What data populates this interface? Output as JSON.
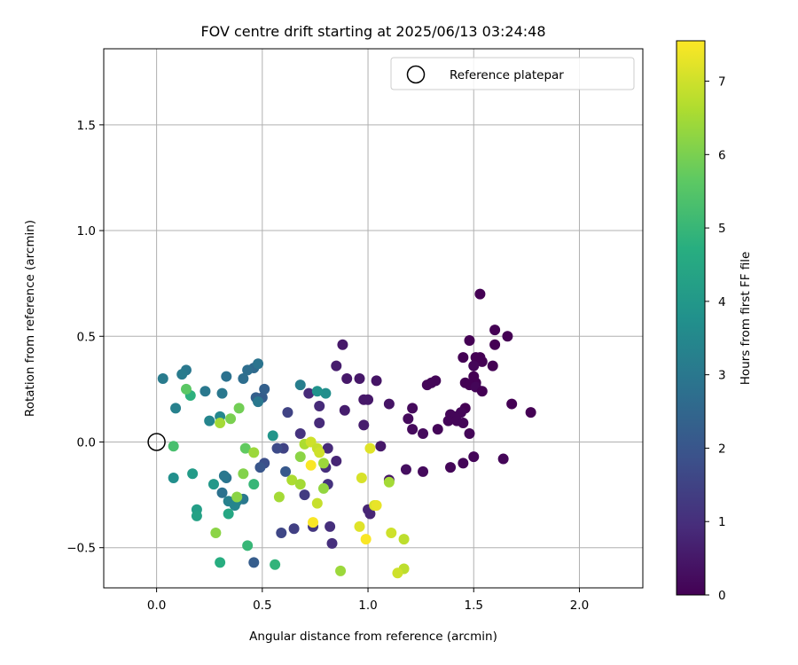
{
  "chart_data": {
    "type": "scatter",
    "title": "FOV centre drift starting at 2025/06/13 03:24:48",
    "xlabel": "Angular distance from reference (arcmin)",
    "ylabel": "Rotation from reference (arcmin)",
    "xlim": [
      -0.25,
      2.3
    ],
    "ylim": [
      -0.69,
      1.86
    ],
    "xticks": [
      {
        "value": 0.0,
        "label": "0.0"
      },
      {
        "value": 0.5,
        "label": "0.5"
      },
      {
        "value": 1.0,
        "label": "1.0"
      },
      {
        "value": 1.5,
        "label": "1.5"
      },
      {
        "value": 2.0,
        "label": "2.0"
      }
    ],
    "yticks": [
      {
        "value": -0.5,
        "label": "−0.5"
      },
      {
        "value": 0.0,
        "label": "0.0"
      },
      {
        "value": 0.5,
        "label": "0.5"
      },
      {
        "value": 1.0,
        "label": "1.0"
      },
      {
        "value": 1.5,
        "label": "1.5"
      }
    ],
    "grid": true,
    "legend": {
      "position": "top-right",
      "entries": [
        {
          "label": "Reference platepar",
          "marker": "open-circle"
        }
      ]
    },
    "reference_point": {
      "x": 0.0,
      "y": 0.0
    },
    "colorbar": {
      "label": "Hours from first FF file",
      "colormap": "viridis",
      "range": [
        0,
        7.55
      ],
      "ticks": [
        {
          "value": 0,
          "label": "0"
        },
        {
          "value": 1,
          "label": "1"
        },
        {
          "value": 2,
          "label": "2"
        },
        {
          "value": 3,
          "label": "3"
        },
        {
          "value": 4,
          "label": "4"
        },
        {
          "value": 5,
          "label": "5"
        },
        {
          "value": 6,
          "label": "6"
        },
        {
          "value": 7,
          "label": "7"
        }
      ]
    },
    "points": [
      {
        "x": 1.53,
        "y": 0.7,
        "c": 0.0
      },
      {
        "x": 1.6,
        "y": 0.53,
        "c": 0.0
      },
      {
        "x": 1.66,
        "y": 0.5,
        "c": 0.0
      },
      {
        "x": 1.48,
        "y": 0.48,
        "c": 0.0
      },
      {
        "x": 1.6,
        "y": 0.46,
        "c": 0.0
      },
      {
        "x": 1.45,
        "y": 0.4,
        "c": 0.0
      },
      {
        "x": 1.51,
        "y": 0.4,
        "c": 0.0
      },
      {
        "x": 1.53,
        "y": 0.4,
        "c": 0.0
      },
      {
        "x": 1.54,
        "y": 0.38,
        "c": 0.0
      },
      {
        "x": 1.5,
        "y": 0.36,
        "c": 0.1
      },
      {
        "x": 1.59,
        "y": 0.36,
        "c": 0.0
      },
      {
        "x": 1.5,
        "y": 0.31,
        "c": 0.0
      },
      {
        "x": 1.51,
        "y": 0.28,
        "c": 0.0
      },
      {
        "x": 1.46,
        "y": 0.28,
        "c": 0.0
      },
      {
        "x": 1.48,
        "y": 0.27,
        "c": 0.0
      },
      {
        "x": 1.51,
        "y": 0.26,
        "c": 0.1
      },
      {
        "x": 1.54,
        "y": 0.24,
        "c": 0.0
      },
      {
        "x": 1.32,
        "y": 0.29,
        "c": 0.1
      },
      {
        "x": 1.28,
        "y": 0.27,
        "c": 0.1
      },
      {
        "x": 1.3,
        "y": 0.28,
        "c": 0.1
      },
      {
        "x": 1.68,
        "y": 0.18,
        "c": 0.0
      },
      {
        "x": 1.77,
        "y": 0.14,
        "c": 0.0
      },
      {
        "x": 1.46,
        "y": 0.16,
        "c": 0.0
      },
      {
        "x": 1.44,
        "y": 0.14,
        "c": 0.1
      },
      {
        "x": 1.39,
        "y": 0.13,
        "c": 0.1
      },
      {
        "x": 1.41,
        "y": 0.12,
        "c": 0.1
      },
      {
        "x": 1.38,
        "y": 0.1,
        "c": 0.1
      },
      {
        "x": 1.42,
        "y": 0.1,
        "c": 0.1
      },
      {
        "x": 1.45,
        "y": 0.09,
        "c": 0.1
      },
      {
        "x": 1.33,
        "y": 0.06,
        "c": 0.1
      },
      {
        "x": 1.26,
        "y": 0.04,
        "c": 0.2
      },
      {
        "x": 1.48,
        "y": 0.04,
        "c": 0.1
      },
      {
        "x": 1.19,
        "y": 0.11,
        "c": 0.2
      },
      {
        "x": 1.21,
        "y": 0.06,
        "c": 0.2
      },
      {
        "x": 1.21,
        "y": 0.16,
        "c": 0.2
      },
      {
        "x": 1.5,
        "y": -0.07,
        "c": 0.1
      },
      {
        "x": 1.64,
        "y": -0.08,
        "c": 0.1
      },
      {
        "x": 1.45,
        "y": -0.1,
        "c": 0.1
      },
      {
        "x": 1.39,
        "y": -0.12,
        "c": 0.1
      },
      {
        "x": 1.26,
        "y": -0.14,
        "c": 0.2
      },
      {
        "x": 1.18,
        "y": -0.13,
        "c": 0.3
      },
      {
        "x": 1.1,
        "y": -0.18,
        "c": 0.4
      },
      {
        "x": 0.88,
        "y": 0.46,
        "c": 0.5
      },
      {
        "x": 0.85,
        "y": 0.36,
        "c": 0.6
      },
      {
        "x": 0.9,
        "y": 0.3,
        "c": 0.5
      },
      {
        "x": 0.96,
        "y": 0.3,
        "c": 0.5
      },
      {
        "x": 1.04,
        "y": 0.29,
        "c": 0.4
      },
      {
        "x": 0.98,
        "y": 0.2,
        "c": 0.5
      },
      {
        "x": 1.0,
        "y": 0.2,
        "c": 0.5
      },
      {
        "x": 1.1,
        "y": 0.18,
        "c": 0.4
      },
      {
        "x": 0.89,
        "y": 0.15,
        "c": 0.6
      },
      {
        "x": 0.98,
        "y": 0.08,
        "c": 0.6
      },
      {
        "x": 1.06,
        "y": -0.02,
        "c": 0.5
      },
      {
        "x": 0.85,
        "y": -0.09,
        "c": 0.8
      },
      {
        "x": 0.72,
        "y": 0.23,
        "c": 0.9
      },
      {
        "x": 0.77,
        "y": 0.17,
        "c": 0.9
      },
      {
        "x": 0.77,
        "y": 0.09,
        "c": 0.9
      },
      {
        "x": 0.68,
        "y": 0.04,
        "c": 1.1
      },
      {
        "x": 0.81,
        "y": -0.03,
        "c": 0.9
      },
      {
        "x": 0.8,
        "y": -0.12,
        "c": 1.0
      },
      {
        "x": 0.81,
        "y": -0.2,
        "c": 1.1
      },
      {
        "x": 0.7,
        "y": -0.25,
        "c": 1.3
      },
      {
        "x": 1.0,
        "y": -0.32,
        "c": 0.8
      },
      {
        "x": 1.01,
        "y": -0.34,
        "c": 0.8
      },
      {
        "x": 0.82,
        "y": -0.4,
        "c": 1.0
      },
      {
        "x": 0.83,
        "y": -0.48,
        "c": 1.0
      },
      {
        "x": 0.74,
        "y": -0.4,
        "c": 1.2
      },
      {
        "x": 0.65,
        "y": -0.41,
        "c": 1.4
      },
      {
        "x": 0.59,
        "y": -0.43,
        "c": 1.6
      },
      {
        "x": 0.6,
        "y": -0.03,
        "c": 1.5
      },
      {
        "x": 0.62,
        "y": 0.14,
        "c": 1.5
      },
      {
        "x": 0.57,
        "y": -0.03,
        "c": 1.7
      },
      {
        "x": 0.51,
        "y": -0.1,
        "c": 1.8
      },
      {
        "x": 0.49,
        "y": -0.12,
        "c": 2.0
      },
      {
        "x": 0.47,
        "y": 0.21,
        "c": 2.3
      },
      {
        "x": 0.5,
        "y": 0.21,
        "c": 2.2
      },
      {
        "x": 0.51,
        "y": 0.25,
        "c": 2.3
      },
      {
        "x": 0.61,
        "y": -0.14,
        "c": 2.1
      },
      {
        "x": 0.46,
        "y": -0.57,
        "c": 2.2
      },
      {
        "x": 0.33,
        "y": 0.31,
        "c": 2.8
      },
      {
        "x": 0.46,
        "y": 0.35,
        "c": 2.6
      },
      {
        "x": 0.43,
        "y": 0.34,
        "c": 2.7
      },
      {
        "x": 0.41,
        "y": 0.3,
        "c": 2.7
      },
      {
        "x": 0.48,
        "y": 0.37,
        "c": 2.9
      },
      {
        "x": 0.48,
        "y": 0.19,
        "c": 3.0
      },
      {
        "x": 0.31,
        "y": 0.23,
        "c": 3.0
      },
      {
        "x": 0.23,
        "y": 0.24,
        "c": 3.0
      },
      {
        "x": 0.14,
        "y": 0.34,
        "c": 3.0
      },
      {
        "x": 0.12,
        "y": 0.32,
        "c": 3.1
      },
      {
        "x": 0.03,
        "y": 0.3,
        "c": 3.1
      },
      {
        "x": 0.09,
        "y": 0.16,
        "c": 3.3
      },
      {
        "x": 0.31,
        "y": -0.24,
        "c": 2.8
      },
      {
        "x": 0.33,
        "y": -0.17,
        "c": 2.9
      },
      {
        "x": 0.32,
        "y": -0.16,
        "c": 3.0
      },
      {
        "x": 0.34,
        "y": -0.28,
        "c": 3.3
      },
      {
        "x": 0.41,
        "y": -0.27,
        "c": 3.0
      },
      {
        "x": 0.38,
        "y": -0.28,
        "c": 3.2
      },
      {
        "x": 0.37,
        "y": -0.3,
        "c": 3.4
      },
      {
        "x": 0.25,
        "y": 0.1,
        "c": 3.4
      },
      {
        "x": 0.3,
        "y": 0.12,
        "c": 3.5
      },
      {
        "x": 0.08,
        "y": -0.17,
        "c": 3.7
      },
      {
        "x": 0.68,
        "y": 0.27,
        "c": 3.2
      },
      {
        "x": 0.8,
        "y": 0.23,
        "c": 3.7
      },
      {
        "x": 0.76,
        "y": 0.24,
        "c": 3.8
      },
      {
        "x": 0.55,
        "y": 0.03,
        "c": 3.9
      },
      {
        "x": 0.17,
        "y": -0.15,
        "c": 4.1
      },
      {
        "x": 0.27,
        "y": -0.2,
        "c": 4.0
      },
      {
        "x": 0.19,
        "y": -0.32,
        "c": 4.2
      },
      {
        "x": 0.19,
        "y": -0.35,
        "c": 4.3
      },
      {
        "x": 0.34,
        "y": -0.34,
        "c": 4.5
      },
      {
        "x": 0.3,
        "y": -0.57,
        "c": 4.7
      },
      {
        "x": 0.56,
        "y": -0.58,
        "c": 4.9
      },
      {
        "x": 0.43,
        "y": -0.49,
        "c": 5.0
      },
      {
        "x": 0.46,
        "y": -0.2,
        "c": 5.0
      },
      {
        "x": 0.16,
        "y": 0.22,
        "c": 4.8
      },
      {
        "x": 0.08,
        "y": -0.02,
        "c": 5.3
      },
      {
        "x": 0.14,
        "y": 0.25,
        "c": 5.6
      },
      {
        "x": 0.39,
        "y": 0.16,
        "c": 5.9
      },
      {
        "x": 0.35,
        "y": 0.11,
        "c": 6.0
      },
      {
        "x": 0.42,
        "y": -0.03,
        "c": 5.7
      },
      {
        "x": 0.41,
        "y": -0.15,
        "c": 6.1
      },
      {
        "x": 0.38,
        "y": -0.26,
        "c": 6.2
      },
      {
        "x": 0.28,
        "y": -0.43,
        "c": 6.2
      },
      {
        "x": 0.46,
        "y": -0.05,
        "c": 6.4
      },
      {
        "x": 0.3,
        "y": 0.09,
        "c": 6.5
      },
      {
        "x": 0.58,
        "y": -0.26,
        "c": 6.5
      },
      {
        "x": 0.64,
        "y": -0.18,
        "c": 6.6
      },
      {
        "x": 0.68,
        "y": -0.2,
        "c": 6.5
      },
      {
        "x": 0.68,
        "y": -0.07,
        "c": 6.2
      },
      {
        "x": 0.7,
        "y": -0.01,
        "c": 6.6
      },
      {
        "x": 0.79,
        "y": -0.1,
        "c": 6.4
      },
      {
        "x": 0.79,
        "y": -0.22,
        "c": 6.3
      },
      {
        "x": 0.87,
        "y": -0.61,
        "c": 6.4
      },
      {
        "x": 1.1,
        "y": -0.19,
        "c": 6.5
      },
      {
        "x": 1.17,
        "y": -0.46,
        "c": 6.8
      },
      {
        "x": 1.17,
        "y": -0.6,
        "c": 6.8
      },
      {
        "x": 1.14,
        "y": -0.62,
        "c": 7.0
      },
      {
        "x": 1.11,
        "y": -0.43,
        "c": 7.0
      },
      {
        "x": 0.97,
        "y": -0.17,
        "c": 7.1
      },
      {
        "x": 0.96,
        "y": -0.4,
        "c": 7.2
      },
      {
        "x": 1.03,
        "y": -0.3,
        "c": 7.1
      },
      {
        "x": 1.01,
        "y": -0.03,
        "c": 7.2
      },
      {
        "x": 0.76,
        "y": -0.29,
        "c": 6.9
      },
      {
        "x": 0.73,
        "y": 0.0,
        "c": 7.0
      },
      {
        "x": 0.76,
        "y": -0.03,
        "c": 6.9
      },
      {
        "x": 0.77,
        "y": -0.05,
        "c": 7.0
      },
      {
        "x": 0.74,
        "y": -0.38,
        "c": 7.5
      },
      {
        "x": 0.73,
        "y": -0.11,
        "c": 7.5
      },
      {
        "x": 0.99,
        "y": -0.46,
        "c": 7.5
      },
      {
        "x": 1.04,
        "y": -0.3,
        "c": 7.3
      }
    ]
  }
}
